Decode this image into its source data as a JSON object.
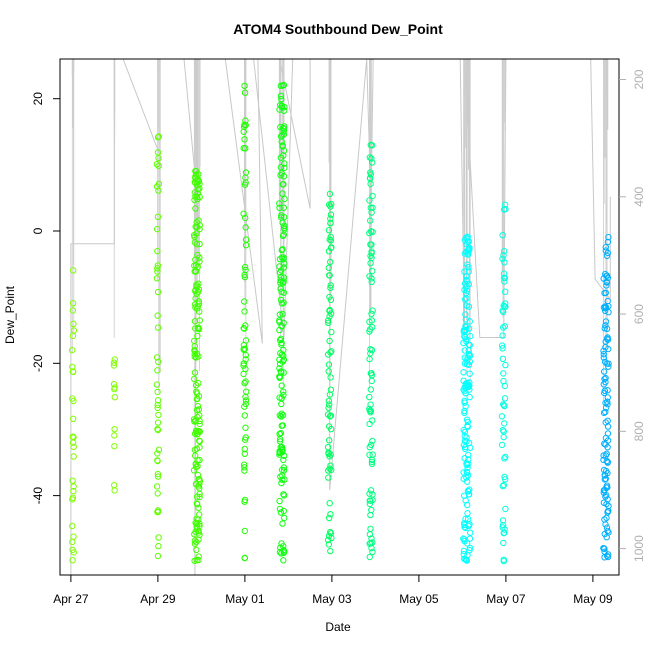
{
  "chart_data": {
    "type": "scatter",
    "title": "ATOM4 Southbound Dew_Point",
    "xlabel": "Date",
    "ylabel": "Dew_Point",
    "x_range_days": [
      -0.25,
      12.6
    ],
    "ylim": [
      -52,
      26
    ],
    "y2lim": [
      1045,
      165
    ],
    "y2_color": "#b0b0b0",
    "x_ticks": [
      {
        "day": 0,
        "label": "Apr 27"
      },
      {
        "day": 2,
        "label": "Apr 29"
      },
      {
        "day": 4,
        "label": "May 01"
      },
      {
        "day": 6,
        "label": "May 03"
      },
      {
        "day": 8,
        "label": "May 05"
      },
      {
        "day": 10,
        "label": "May 07"
      },
      {
        "day": 12,
        "label": "May 09"
      }
    ],
    "y_ticks": [
      {
        "value": -40,
        "label": "-40"
      },
      {
        "value": -20,
        "label": "-20"
      },
      {
        "value": 0,
        "label": "0"
      },
      {
        "value": 20,
        "label": "20"
      }
    ],
    "y2_ticks": [
      {
        "value": 200,
        "label": "200"
      },
      {
        "value": 400,
        "label": "400"
      },
      {
        "value": 600,
        "label": "600"
      },
      {
        "value": 800,
        "label": "800"
      },
      {
        "value": 1000,
        "label": "1000"
      }
    ],
    "flights": [
      {
        "day": 0.05,
        "color": "#80ff00",
        "top": -4,
        "bottom": -50,
        "n": 30,
        "drift": 0.04
      },
      {
        "day": 1.0,
        "color": "#80ff00",
        "top": -18,
        "bottom": -40,
        "n": 12,
        "drift": 0.02
      },
      {
        "day": 2.0,
        "color": "#5fff00",
        "top": 15,
        "bottom": -50,
        "n": 45,
        "drift": 0.05
      },
      {
        "day": 2.9,
        "color": "#40ff00",
        "top": 10,
        "bottom": -50,
        "n": 160,
        "drift": 0.14
      },
      {
        "day": 4.0,
        "color": "#20ff00",
        "top": 23,
        "bottom": -50,
        "n": 60,
        "drift": 0.06
      },
      {
        "day": 4.85,
        "color": "#10ff10",
        "top": 23,
        "bottom": -50,
        "n": 150,
        "drift": 0.12
      },
      {
        "day": 5.95,
        "color": "#00ff60",
        "top": 7,
        "bottom": -50,
        "n": 70,
        "drift": 0.08
      },
      {
        "day": 6.9,
        "color": "#00ff80",
        "top": 13,
        "bottom": -50,
        "n": 80,
        "drift": 0.08
      },
      {
        "day": 9.1,
        "color": "#00ffff",
        "top": 0,
        "bottom": -50,
        "n": 150,
        "drift": 0.16
      },
      {
        "day": 9.95,
        "color": "#00ffe0",
        "top": 5,
        "bottom": -50,
        "n": 55,
        "drift": 0.08
      },
      {
        "day": 12.3,
        "color": "#00b0ff",
        "top": 0,
        "bottom": -50,
        "n": 110,
        "drift": 0.12
      }
    ],
    "pressure_traces": [
      {
        "points": [
          [
            0.0,
            1045
          ],
          [
            0.0,
            480
          ],
          [
            1.0,
            480
          ],
          [
            1.0,
            165
          ]
        ]
      },
      {
        "points": [
          [
            1.2,
            165
          ],
          [
            2.05,
            330
          ],
          [
            2.05,
            700
          ],
          [
            2.05,
            165
          ]
        ]
      },
      {
        "points": [
          [
            2.6,
            165
          ],
          [
            2.85,
            360
          ],
          [
            2.85,
            1045
          ],
          [
            2.9,
            165
          ]
        ]
      },
      {
        "points": [
          [
            3.55,
            165
          ],
          [
            4.4,
            650
          ],
          [
            4.3,
            165
          ]
        ]
      },
      {
        "points": [
          [
            4.2,
            165
          ],
          [
            4.9,
            640
          ],
          [
            5.1,
            165
          ]
        ]
      },
      {
        "points": [
          [
            4.8,
            165
          ],
          [
            5.5,
            420
          ],
          [
            5.5,
            165
          ]
        ]
      },
      {
        "points": [
          [
            5.95,
            165
          ],
          [
            5.95,
            900
          ],
          [
            6.8,
            165
          ],
          [
            6.9,
            420
          ],
          [
            6.95,
            165
          ]
        ]
      },
      {
        "points": [
          [
            8.95,
            165
          ],
          [
            9.05,
            640
          ],
          [
            9.05,
            165
          ],
          [
            9.4,
            640
          ],
          [
            9.95,
            640
          ],
          [
            10.0,
            165
          ]
        ]
      },
      {
        "points": [
          [
            11.95,
            165
          ],
          [
            12.05,
            540
          ],
          [
            12.4,
            575
          ],
          [
            12.4,
            400
          ]
        ]
      }
    ]
  }
}
